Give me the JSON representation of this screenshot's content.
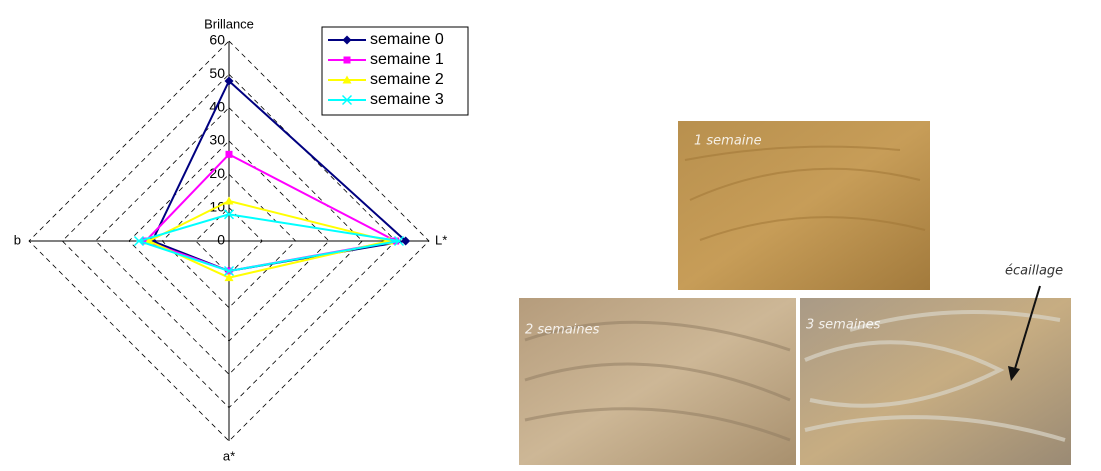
{
  "chart_data": {
    "type": "radar",
    "categories": [
      "Brillance",
      "L*",
      "a*",
      "b"
    ],
    "rlim": [
      0,
      60
    ],
    "rticks": [
      0,
      10,
      20,
      30,
      40,
      50,
      60
    ],
    "grid": true,
    "legend": "top-right",
    "series": [
      {
        "name": "semaine 0",
        "color": "#000080",
        "marker": "diamond",
        "values": [
          48,
          53,
          9,
          23
        ]
      },
      {
        "name": "semaine 1",
        "color": "#ff00ff",
        "marker": "square",
        "values": [
          26,
          50,
          9,
          25
        ]
      },
      {
        "name": "semaine 2",
        "color": "#ffff00",
        "marker": "triangle",
        "values": [
          12,
          48,
          11,
          24
        ]
      },
      {
        "name": "semaine 3",
        "color": "#00ffff",
        "marker": "x",
        "values": [
          8,
          51,
          9,
          27
        ]
      }
    ]
  },
  "photos": {
    "labels": [
      "1 semaine",
      "2 semaines",
      "3 semaines"
    ],
    "annotation": "écaillage"
  }
}
